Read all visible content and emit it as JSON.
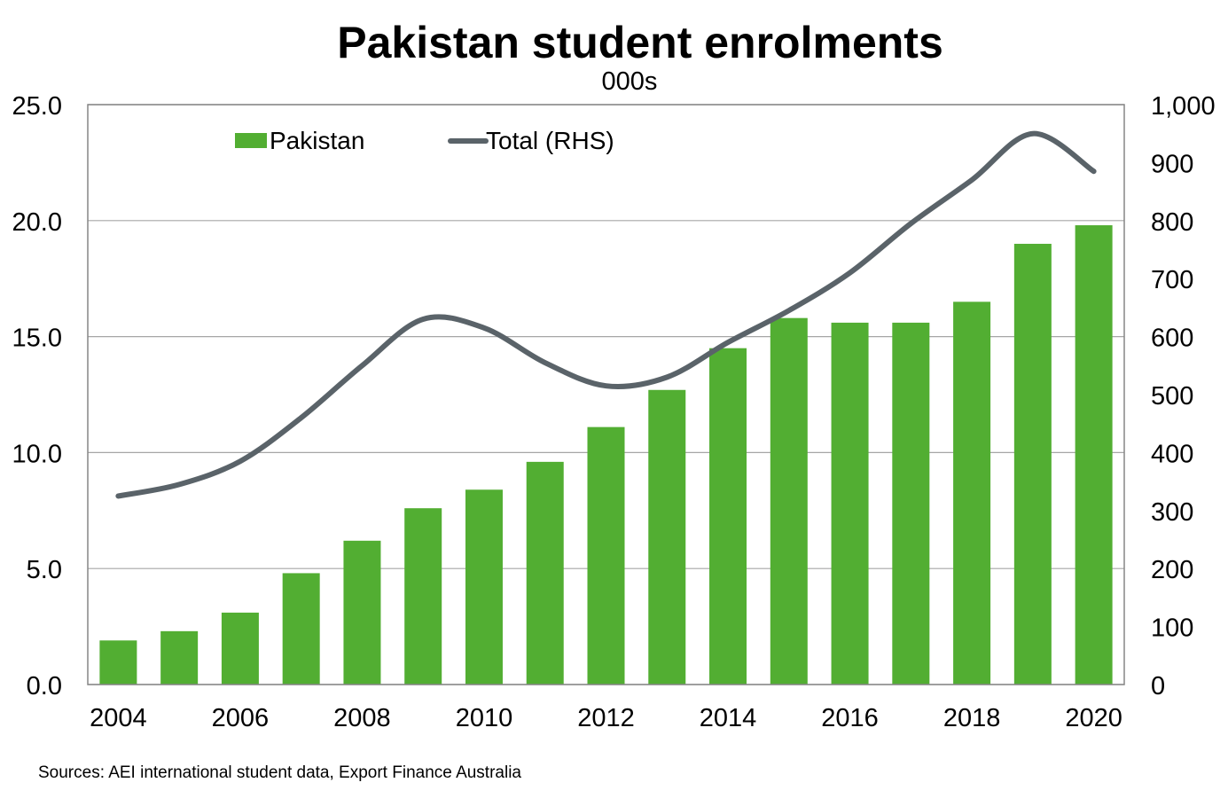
{
  "chart_data": {
    "type": "bar",
    "title": "Pakistan student enrolments",
    "subtitle": "000s",
    "categories": [
      "2004",
      "2005",
      "2006",
      "2007",
      "2008",
      "2009",
      "2010",
      "2011",
      "2012",
      "2013",
      "2014",
      "2015",
      "2016",
      "2017",
      "2018",
      "2019",
      "2020"
    ],
    "x_tick_labels": [
      "2004",
      "2006",
      "2008",
      "2010",
      "2012",
      "2014",
      "2016",
      "2018",
      "2020"
    ],
    "series": [
      {
        "name": "Pakistan",
        "type": "bar",
        "axis": "left",
        "color": "#52ae32",
        "values": [
          1.9,
          2.3,
          3.1,
          4.8,
          6.2,
          7.6,
          8.4,
          9.6,
          11.1,
          12.7,
          14.5,
          15.8,
          15.6,
          15.6,
          16.5,
          19.0,
          19.8
        ]
      },
      {
        "name": "Total (RHS)",
        "type": "line",
        "axis": "right",
        "color": "#5a6369",
        "values": [
          325,
          345,
          385,
          460,
          550,
          630,
          615,
          555,
          515,
          530,
          590,
          645,
          710,
          795,
          870,
          950,
          885
        ]
      }
    ],
    "y_left": {
      "min": 0,
      "max": 25,
      "ticks": [
        0,
        5,
        10,
        15,
        20,
        25
      ],
      "tick_labels": [
        "0.0",
        "5.0",
        "10.0",
        "15.0",
        "20.0",
        "25.0"
      ]
    },
    "y_right": {
      "min": 0,
      "max": 1000,
      "ticks": [
        0,
        100,
        200,
        300,
        400,
        500,
        600,
        700,
        800,
        900,
        1000
      ],
      "tick_labels": [
        "0",
        "100",
        "200",
        "300",
        "400",
        "500",
        "600",
        "700",
        "800",
        "900",
        "1,000"
      ]
    },
    "grid": true,
    "legend_placement": "top-left",
    "source": "Sources: AEI international student data, Export Finance Australia"
  }
}
